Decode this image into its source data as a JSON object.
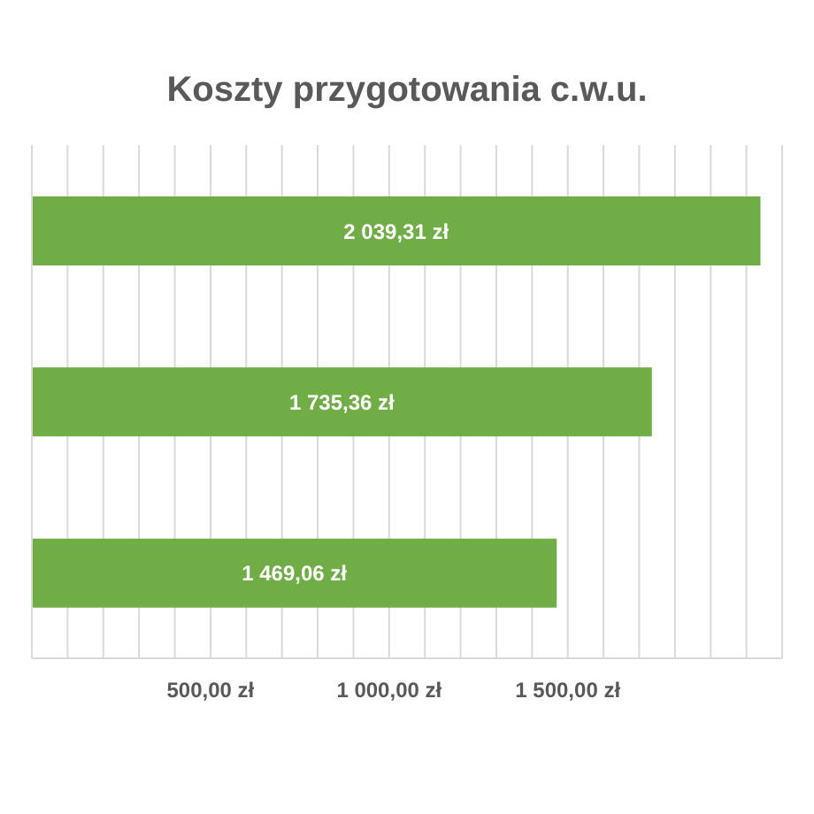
{
  "chart_data": {
    "type": "bar",
    "orientation": "horizontal",
    "title": "Koszty przygotowania c.w.u.",
    "categories": [
      null,
      null,
      null
    ],
    "values": [
      2039.31,
      1735.36,
      1469.06
    ],
    "value_labels": [
      "2 039,31 zł",
      "1 735,36 zł",
      "1 469,06 zł"
    ],
    "color": "#70ad47",
    "xlim": [
      0,
      2100
    ],
    "xticks": [
      {
        "value": 0,
        "label": null
      },
      {
        "value": 100,
        "label": null
      },
      {
        "value": 200,
        "label": null
      },
      {
        "value": 300,
        "label": null
      },
      {
        "value": 400,
        "label": null
      },
      {
        "value": 500,
        "label": "500,00 zł"
      },
      {
        "value": 600,
        "label": null
      },
      {
        "value": 700,
        "label": null
      },
      {
        "value": 800,
        "label": null
      },
      {
        "value": 900,
        "label": null
      },
      {
        "value": 1000,
        "label": "1 000,00 zł"
      },
      {
        "value": 1100,
        "label": null
      },
      {
        "value": 1200,
        "label": null
      },
      {
        "value": 1300,
        "label": null
      },
      {
        "value": 1400,
        "label": null
      },
      {
        "value": 1500,
        "label": "1 500,00 zł"
      },
      {
        "value": 1600,
        "label": null
      },
      {
        "value": 1700,
        "label": null
      },
      {
        "value": 1800,
        "label": null
      },
      {
        "value": 1900,
        "label": null
      },
      {
        "value": 2000,
        "label": null
      },
      {
        "value": 2100,
        "label": null
      }
    ],
    "grid": "x"
  }
}
